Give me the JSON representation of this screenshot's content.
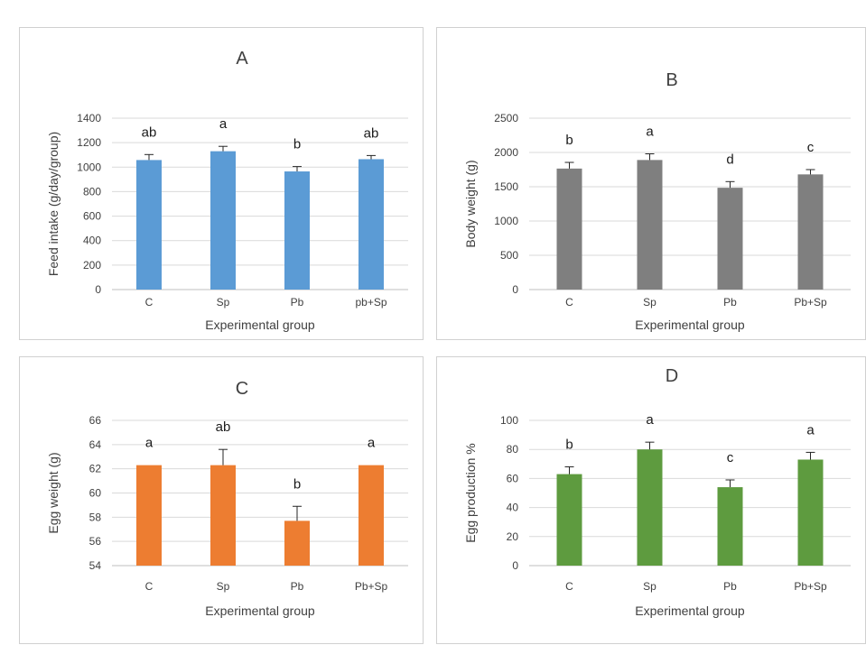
{
  "chart_data": [
    {
      "id": "A",
      "type": "bar",
      "title": "A",
      "ylabel": "Feed intake (g/day/group)",
      "xlabel": "Experimental group",
      "categories": [
        "C",
        "Sp",
        "Pb",
        "pb+Sp"
      ],
      "values": [
        1058,
        1130,
        965,
        1065
      ],
      "errors": [
        45,
        40,
        40,
        30
      ],
      "letters": [
        "ab",
        "a",
        "b",
        "ab"
      ],
      "ylim": [
        0,
        1400
      ],
      "yticks": [
        0,
        200,
        400,
        600,
        800,
        1000,
        1200,
        1400
      ],
      "color": "#5b9bd5",
      "grid": true
    },
    {
      "id": "B",
      "type": "bar",
      "title": "B",
      "ylabel": "Body weight (g)",
      "xlabel": "Experimental group",
      "categories": [
        "C",
        "Sp",
        "Pb",
        "Pb+Sp"
      ],
      "values": [
        1765,
        1890,
        1485,
        1680
      ],
      "errors": [
        90,
        90,
        90,
        70
      ],
      "letters": [
        "b",
        "a",
        "d",
        "c"
      ],
      "ylim": [
        0,
        2500
      ],
      "yticks": [
        0,
        500,
        1000,
        1500,
        2000,
        2500
      ],
      "color": "#7f7f7f",
      "grid": true
    },
    {
      "id": "C",
      "type": "bar",
      "title": "C",
      "ylabel": "Egg weight (g)",
      "xlabel": "Experimental group",
      "categories": [
        "C",
        "Sp",
        "Pb",
        "Pb+Sp"
      ],
      "values": [
        62.3,
        62.3,
        57.7,
        62.3
      ],
      "errors": [
        0,
        1.3,
        1.2,
        0
      ],
      "letters": [
        "a",
        "ab",
        "b",
        "a"
      ],
      "ylim": [
        54,
        66
      ],
      "yticks": [
        54,
        56,
        58,
        60,
        62,
        64,
        66
      ],
      "color": "#ed7d31",
      "grid": true
    },
    {
      "id": "D",
      "type": "bar",
      "title": "D",
      "ylabel": "Egg production %",
      "xlabel": "Experimental group",
      "categories": [
        "C",
        "Sp",
        "Pb",
        "Pb+Sp"
      ],
      "values": [
        63,
        80,
        54,
        73
      ],
      "errors": [
        5,
        5,
        5,
        5
      ],
      "letters": [
        "b",
        "a",
        "c",
        "a"
      ],
      "ylim": [
        0,
        100
      ],
      "yticks": [
        0,
        20,
        40,
        60,
        80,
        100
      ],
      "color": "#5e9b3f",
      "grid": true
    }
  ]
}
